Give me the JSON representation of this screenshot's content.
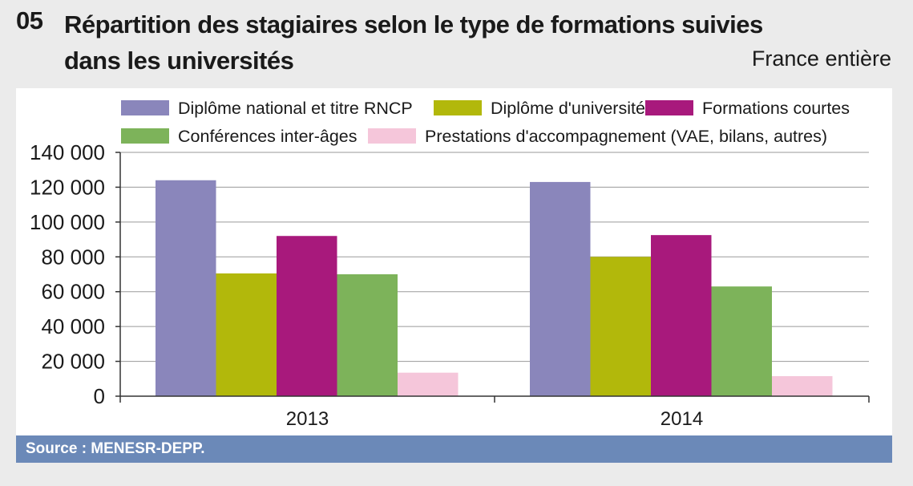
{
  "header": {
    "number": "05",
    "title": "Répartition des stagiaires selon le type de formations suivies dans les universités",
    "scope": "France entière"
  },
  "footer": {
    "source": "Source : MENESR-DEPP."
  },
  "chart_data": {
    "type": "bar",
    "title": "Répartition des stagiaires selon le type de formations suivies dans les universités",
    "xlabel": "",
    "ylabel": "",
    "categories": [
      "2013",
      "2014"
    ],
    "ylim": [
      0,
      140000
    ],
    "yticks": [
      0,
      20000,
      40000,
      60000,
      80000,
      100000,
      120000,
      140000
    ],
    "ytick_labels": [
      "0",
      "20 000",
      "40 000",
      "60 000",
      "80 000",
      "100 000",
      "120 000",
      "140 000"
    ],
    "grid": true,
    "legend_position": "top",
    "series": [
      {
        "name": "Diplôme national et titre RNCP",
        "color": "#8a86bb",
        "values": [
          124000,
          123000
        ]
      },
      {
        "name": "Diplôme d'université",
        "color": "#b2b80b",
        "values": [
          70500,
          80000
        ]
      },
      {
        "name": "Formations courtes",
        "color": "#a8197c",
        "values": [
          92000,
          92500
        ]
      },
      {
        "name": "Conférences inter-âges",
        "color": "#7db35a",
        "values": [
          70000,
          63000
        ]
      },
      {
        "name": "Prestations d'accompagnement (VAE, bilans, autres)",
        "color": "#f5c6da",
        "values": [
          13500,
          11500
        ]
      }
    ]
  }
}
